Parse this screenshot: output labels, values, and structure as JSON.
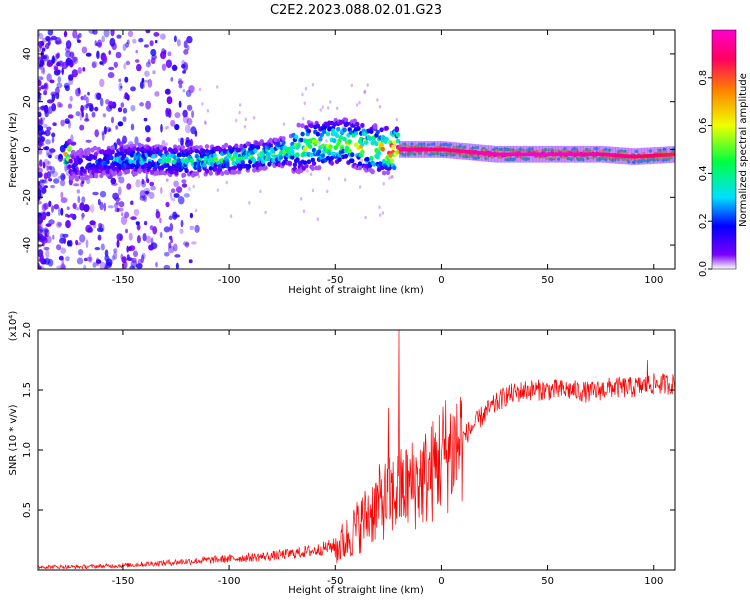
{
  "figure_title": "C2E2.2023.088.02.01.G23",
  "chart_data": [
    {
      "type": "heatmap",
      "title": "C2E2.2023.088.02.01.G23",
      "xlabel": "Height of straight line (km)",
      "ylabel": "Frequency (Hz)",
      "xlim": [
        -190,
        110
      ],
      "ylim": [
        -50,
        50
      ],
      "xticks": [
        -150,
        -100,
        -50,
        0,
        50,
        100
      ],
      "yticks": [
        -40,
        -20,
        0,
        20,
        40
      ],
      "colorbar": {
        "label": "Normalized spectral amplitude",
        "range": [
          0.0,
          1.0
        ],
        "ticks": [
          0.0,
          0.2,
          0.4,
          0.6,
          0.8
        ],
        "colormap": [
          "#ffffff",
          "#7a00ff",
          "#0000ff",
          "#00e0ff",
          "#00ff40",
          "#f0ff00",
          "#ff8000",
          "#ff0060",
          "#ff00d0"
        ]
      },
      "ridge": [
        {
          "x": -175,
          "freq": -7,
          "amp": 0.15
        },
        {
          "x": -160,
          "freq": -5,
          "amp": 0.25
        },
        {
          "x": -140,
          "freq": -4,
          "amp": 0.35
        },
        {
          "x": -120,
          "freq": -5,
          "amp": 0.4
        },
        {
          "x": -100,
          "freq": -4,
          "amp": 0.45
        },
        {
          "x": -80,
          "freq": -2,
          "amp": 0.5
        },
        {
          "x": -60,
          "freq": 2,
          "amp": 0.55
        },
        {
          "x": -45,
          "freq": 3,
          "amp": 0.6
        },
        {
          "x": -30,
          "freq": 0,
          "amp": 0.7
        },
        {
          "x": -20,
          "freq": 0,
          "amp": 0.95
        },
        {
          "x": 0,
          "freq": 0,
          "amp": 0.9
        },
        {
          "x": 25,
          "freq": -2,
          "amp": 0.98
        },
        {
          "x": 50,
          "freq": -2,
          "amp": 1.0
        },
        {
          "x": 75,
          "freq": -2,
          "amp": 0.95
        },
        {
          "x": 90,
          "freq": -3,
          "amp": 0.9
        },
        {
          "x": 110,
          "freq": -2,
          "amp": 0.85
        }
      ]
    },
    {
      "type": "line",
      "xlabel": "Height of straight line (km)",
      "ylabel": "SNR (10 * v/v)",
      "y_multiplier": "(x10⁴)",
      "xlim": [
        -190,
        110
      ],
      "ylim": [
        0,
        2.0
      ],
      "xticks": [
        -150,
        -100,
        -50,
        0,
        50,
        100
      ],
      "yticks": [
        0.5,
        1.0,
        1.5,
        2.0
      ],
      "color": "#ff0000",
      "series": [
        {
          "x": [
            -190,
            -170,
            -150,
            -140,
            -120,
            -100,
            -80,
            -60,
            -50,
            -45,
            -40,
            -35,
            -30,
            -25,
            -20,
            -15,
            -10,
            -5,
            0,
            5,
            10,
            20,
            30,
            40,
            50,
            60,
            70,
            80,
            90,
            100,
            110
          ],
          "values": [
            0.02,
            0.02,
            0.03,
            0.04,
            0.06,
            0.08,
            0.1,
            0.14,
            0.18,
            0.25,
            0.35,
            0.45,
            0.55,
            0.6,
            0.65,
            0.7,
            0.75,
            0.8,
            0.95,
            1.0,
            1.1,
            1.3,
            1.45,
            1.5,
            1.5,
            1.5,
            1.48,
            1.52,
            1.52,
            1.55,
            1.55
          ]
        }
      ],
      "peaks": [
        {
          "x": -20,
          "value": 2.0
        },
        {
          "x": -25,
          "value": 1.35
        },
        {
          "x": 97,
          "value": 1.75
        }
      ]
    }
  ]
}
